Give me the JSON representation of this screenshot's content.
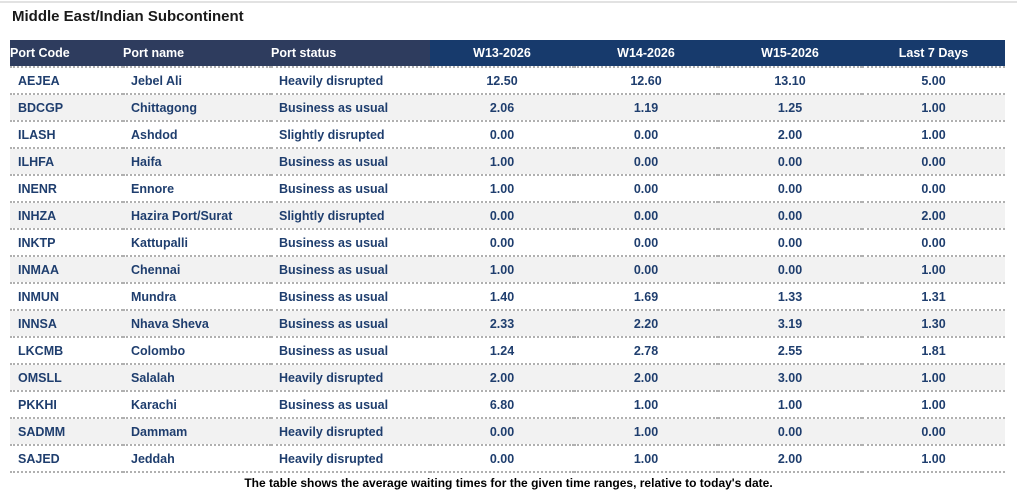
{
  "title": "Middle East/Indian Subcontinent",
  "footer_note": "The table shows the average waiting times for the given time ranges, relative to today's date.",
  "colors": {
    "title_color": "#1a1a1a",
    "header_left_bg": "#2e3c5e",
    "header_right_bg": "#173a6c",
    "header_text": "#ffffff",
    "data_text": "#1f3e6e",
    "row_alt_bg": "#f2f2f2",
    "separator": "#b0b0b0",
    "footer_color": "#000000"
  },
  "chart_data": {
    "type": "table",
    "title": "Middle East/Indian Subcontinent",
    "legend_position": "none",
    "grid": "dotted-row-separators",
    "columns": [
      {
        "key": "port_code",
        "label": "Port Code",
        "align": "left"
      },
      {
        "key": "port_name",
        "label": "Port name",
        "align": "left"
      },
      {
        "key": "port_status",
        "label": "Port status",
        "align": "left"
      },
      {
        "key": "w13_2026",
        "label": "W13-2026",
        "align": "center"
      },
      {
        "key": "w14_2026",
        "label": "W14-2026",
        "align": "center"
      },
      {
        "key": "w15_2026",
        "label": "W15-2026",
        "align": "center"
      },
      {
        "key": "last_7_days",
        "label": "Last 7 Days",
        "align": "center"
      }
    ],
    "rows": [
      [
        "AEJEA",
        "Jebel Ali",
        "Heavily disrupted",
        "12.50",
        "12.60",
        "13.10",
        "5.00"
      ],
      [
        "BDCGP",
        "Chittagong",
        "Business as usual",
        "2.06",
        "1.19",
        "1.25",
        "1.00"
      ],
      [
        "ILASH",
        "Ashdod",
        "Slightly disrupted",
        "0.00",
        "0.00",
        "2.00",
        "1.00"
      ],
      [
        "ILHFA",
        "Haifa",
        "Business as usual",
        "1.00",
        "0.00",
        "0.00",
        "0.00"
      ],
      [
        "INENR",
        "Ennore",
        "Business as usual",
        "1.00",
        "0.00",
        "0.00",
        "0.00"
      ],
      [
        "INHZA",
        "Hazira Port/Surat",
        "Slightly disrupted",
        "0.00",
        "0.00",
        "0.00",
        "2.00"
      ],
      [
        "INKTP",
        "Kattupalli",
        "Business as usual",
        "0.00",
        "0.00",
        "0.00",
        "0.00"
      ],
      [
        "INMAA",
        "Chennai",
        "Business as usual",
        "1.00",
        "0.00",
        "0.00",
        "1.00"
      ],
      [
        "INMUN",
        "Mundra",
        "Business as usual",
        "1.40",
        "1.69",
        "1.33",
        "1.31"
      ],
      [
        "INNSA",
        "Nhava Sheva",
        "Business as usual",
        "2.33",
        "2.20",
        "3.19",
        "1.30"
      ],
      [
        "LKCMB",
        "Colombo",
        "Business as usual",
        "1.24",
        "2.78",
        "2.55",
        "1.81"
      ],
      [
        "OMSLL",
        "Salalah",
        "Heavily disrupted",
        "2.00",
        "2.00",
        "3.00",
        "1.00"
      ],
      [
        "PKKHI",
        "Karachi",
        "Business as usual",
        "6.80",
        "1.00",
        "1.00",
        "1.00"
      ],
      [
        "SADMM",
        "Dammam",
        "Heavily disrupted",
        "0.00",
        "1.00",
        "0.00",
        "0.00"
      ],
      [
        "SAJED",
        "Jeddah",
        "Heavily disrupted",
        "0.00",
        "1.00",
        "2.00",
        "1.00"
      ]
    ]
  }
}
